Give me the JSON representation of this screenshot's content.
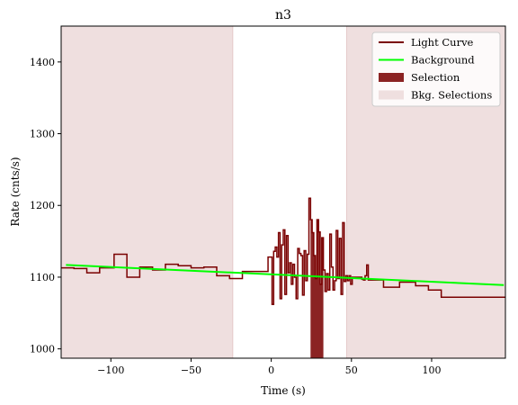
{
  "chart_data": {
    "type": "line",
    "title": "n3",
    "xlabel": "Time (s)",
    "ylabel": "Rate (cnts/s)",
    "xlim": [
      -131,
      146
    ],
    "ylim": [
      987,
      1450
    ],
    "x_ticks": [
      -100,
      -50,
      0,
      50,
      100
    ],
    "x_tick_labels": [
      "−100",
      "−50",
      "0",
      "50",
      "100"
    ],
    "y_ticks": [
      1000,
      1100,
      1200,
      1300,
      1400
    ],
    "y_tick_labels": [
      "1000",
      "1100",
      "1200",
      "1300",
      "1400"
    ],
    "legend_position": "top-right",
    "legend": [
      {
        "label": "Light Curve",
        "kind": "line",
        "color": "#7a0000"
      },
      {
        "label": "Background",
        "kind": "line",
        "color": "#00ff00"
      },
      {
        "label": "Selection",
        "kind": "patch",
        "color": "#8b2323"
      },
      {
        "label": "Bkg. Selections",
        "kind": "patch",
        "color": "#efdfdf"
      }
    ],
    "colors": {
      "light_curve": "#7a0000",
      "background": "#00ff00",
      "selection": "#8b2323",
      "bkg_selection": "#efdfdf",
      "bkg_selection_edge": "#e6caca"
    },
    "light_curve": {
      "edges": [
        -131,
        -123,
        -115,
        -107,
        -98,
        -90,
        -82,
        -74,
        -66,
        -58,
        -50,
        -42,
        -34,
        -26,
        -18,
        -10,
        -2,
        0.5,
        1.5,
        2.5,
        3.5,
        4.5,
        5.5,
        6.5,
        7.5,
        8.5,
        9.5,
        10.5,
        11.5,
        12.5,
        13.5,
        14.5,
        15.5,
        16.5,
        17.5,
        18.5,
        19.5,
        20.5,
        21.5,
        22.5,
        23.5,
        24.5,
        25.5,
        26.5,
        27.5,
        28.5,
        29.5,
        30.5,
        31.5,
        32.5,
        33.5,
        34.5,
        35.5,
        36.5,
        37.5,
        38.5,
        39.5,
        40.5,
        41.5,
        42.5,
        43.5,
        44.5,
        45.5,
        46.5,
        47.5,
        48.5,
        49.5,
        50.5,
        51.5,
        52.5,
        53.5,
        54.5,
        55.5,
        56.5,
        57.5,
        58.5,
        59.5,
        60.5,
        70,
        80,
        90,
        98,
        106,
        114,
        122,
        130,
        138,
        146
      ],
      "values": [
        1113,
        1112,
        1106,
        1113,
        1132,
        1100,
        1114,
        1110,
        1118,
        1116,
        1113,
        1114,
        1102,
        1098,
        1108,
        1108,
        1128,
        1062,
        1136,
        1142,
        1128,
        1162,
        1070,
        1145,
        1166,
        1076,
        1158,
        1106,
        1120,
        1090,
        1118,
        1100,
        1070,
        1140,
        1133,
        1130,
        1075,
        1137,
        1095,
        1132,
        1210,
        1180,
        1162,
        1130,
        1098,
        1180,
        1163,
        1090,
        1155,
        1110,
        1080,
        1105,
        1082,
        1160,
        1114,
        1082,
        1095,
        1165,
        1098,
        1154,
        1076,
        1176,
        1094,
        1102,
        1095,
        1102,
        1090,
        1100,
        1100,
        1100,
        1100,
        1100,
        1100,
        1097,
        1096,
        1102,
        1117,
        1096,
        1086,
        1093,
        1088,
        1082,
        1072,
        1072,
        1072,
        1072,
        1072
      ]
    },
    "background": {
      "x": [
        -128,
        145
      ],
      "y": [
        1117,
        1089
      ]
    },
    "selection": {
      "x_start": 24.5,
      "x_end": 32.5
    },
    "bkg_selections": [
      {
        "x_start": -131,
        "x_end": -24
      },
      {
        "x_start": 47,
        "x_end": 146
      }
    ]
  }
}
